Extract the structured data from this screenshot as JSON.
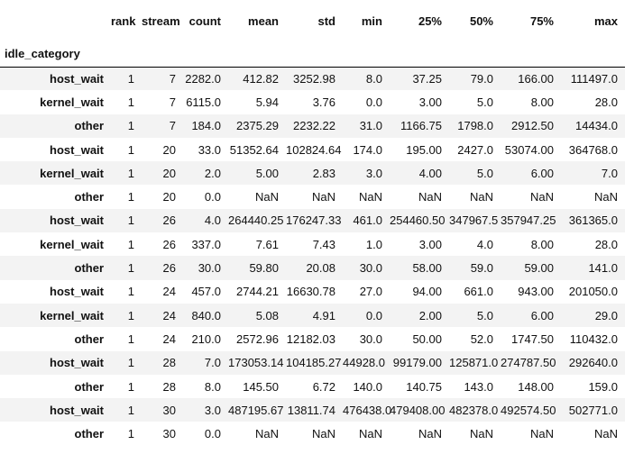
{
  "chart_data": {
    "type": "table",
    "title": "",
    "index_name": "idle_category",
    "columns": [
      "rank",
      "stream",
      "count",
      "mean",
      "std",
      "min",
      "25%",
      "50%",
      "75%",
      "max"
    ],
    "rows": [
      {
        "index": "host_wait",
        "values": [
          "1",
          "7",
          "2282.0",
          "412.82",
          "3252.98",
          "8.0",
          "37.25",
          "79.0",
          "166.00",
          "111497.0"
        ]
      },
      {
        "index": "kernel_wait",
        "values": [
          "1",
          "7",
          "6115.0",
          "5.94",
          "3.76",
          "0.0",
          "3.00",
          "5.0",
          "8.00",
          "28.0"
        ]
      },
      {
        "index": "other",
        "values": [
          "1",
          "7",
          "184.0",
          "2375.29",
          "2232.22",
          "31.0",
          "1166.75",
          "1798.0",
          "2912.50",
          "14434.0"
        ]
      },
      {
        "index": "host_wait",
        "values": [
          "1",
          "20",
          "33.0",
          "51352.64",
          "102824.64",
          "174.0",
          "195.00",
          "2427.0",
          "53074.00",
          "364768.0"
        ]
      },
      {
        "index": "kernel_wait",
        "values": [
          "1",
          "20",
          "2.0",
          "5.00",
          "2.83",
          "3.0",
          "4.00",
          "5.0",
          "6.00",
          "7.0"
        ]
      },
      {
        "index": "other",
        "values": [
          "1",
          "20",
          "0.0",
          "NaN",
          "NaN",
          "NaN",
          "NaN",
          "NaN",
          "NaN",
          "NaN"
        ]
      },
      {
        "index": "host_wait",
        "values": [
          "1",
          "26",
          "4.0",
          "264440.25",
          "176247.33",
          "461.0",
          "254460.50",
          "347967.5",
          "357947.25",
          "361365.0"
        ]
      },
      {
        "index": "kernel_wait",
        "values": [
          "1",
          "26",
          "337.0",
          "7.61",
          "7.43",
          "1.0",
          "3.00",
          "4.0",
          "8.00",
          "28.0"
        ]
      },
      {
        "index": "other",
        "values": [
          "1",
          "26",
          "30.0",
          "59.80",
          "20.08",
          "30.0",
          "58.00",
          "59.0",
          "59.00",
          "141.0"
        ]
      },
      {
        "index": "host_wait",
        "values": [
          "1",
          "24",
          "457.0",
          "2744.21",
          "16630.78",
          "27.0",
          "94.00",
          "661.0",
          "943.00",
          "201050.0"
        ]
      },
      {
        "index": "kernel_wait",
        "values": [
          "1",
          "24",
          "840.0",
          "5.08",
          "4.91",
          "0.0",
          "2.00",
          "5.0",
          "6.00",
          "29.0"
        ]
      },
      {
        "index": "other",
        "values": [
          "1",
          "24",
          "210.0",
          "2572.96",
          "12182.03",
          "30.0",
          "50.00",
          "52.0",
          "1747.50",
          "110432.0"
        ]
      },
      {
        "index": "host_wait",
        "values": [
          "1",
          "28",
          "7.0",
          "173053.14",
          "104185.27",
          "44928.0",
          "99179.00",
          "125871.0",
          "274787.50",
          "292640.0"
        ]
      },
      {
        "index": "other",
        "values": [
          "1",
          "28",
          "8.0",
          "145.50",
          "6.72",
          "140.0",
          "140.75",
          "143.0",
          "148.00",
          "159.0"
        ]
      },
      {
        "index": "host_wait",
        "values": [
          "1",
          "30",
          "3.0",
          "487195.67",
          "13811.74",
          "476438.0",
          "479408.00",
          "482378.0",
          "492574.50",
          "502771.0"
        ]
      },
      {
        "index": "other",
        "values": [
          "1",
          "30",
          "0.0",
          "NaN",
          "NaN",
          "NaN",
          "NaN",
          "NaN",
          "NaN",
          "NaN"
        ]
      }
    ]
  },
  "colors": {
    "stripe": "#f3f3f3",
    "row_alt": "#ffffff",
    "text": "#111111",
    "header_rule": "#000000"
  }
}
